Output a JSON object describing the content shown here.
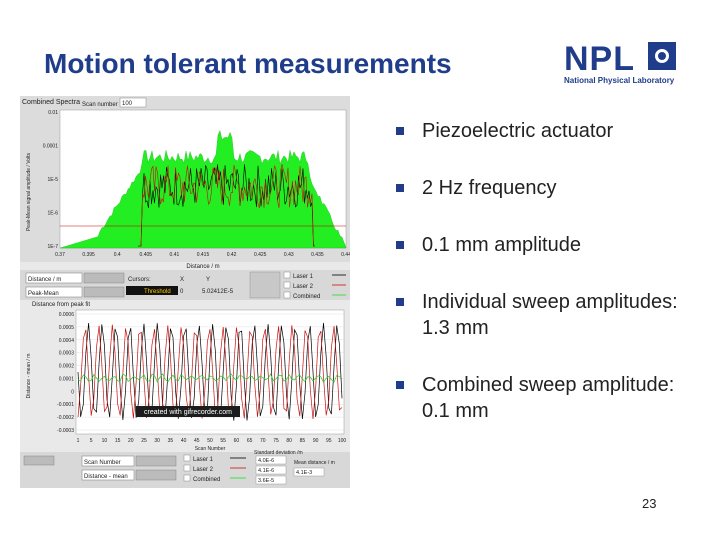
{
  "slide": {
    "title": "Motion tolerant measurements",
    "page_number": "23",
    "logo": {
      "name": "NPL",
      "subtitle": "National Physical Laboratory"
    },
    "bullets": [
      "Piezoelectric actuator",
      "2 Hz frequency",
      "0.1 mm amplitude",
      "Individual sweep amplitudes: 1.3 mm",
      "Combined  sweep amplitude: 0.1 mm"
    ]
  },
  "panel": {
    "top_chart": {
      "title": "Combined Spectra",
      "scan_label": "Scan number",
      "scan_value": "100",
      "ylabel": "Peak-Mean signal amplitude / Volts",
      "xlabel": "Distance / m",
      "yticks": [
        "0.01",
        "0.0001",
        "1E-5",
        "1E-6",
        "1E-7"
      ],
      "xticks": [
        "0.37",
        "0.395",
        "0.4",
        "0.405",
        "0.41",
        "0.415",
        "0.42",
        "0.425",
        "0.43",
        "0.435",
        "0.44"
      ]
    },
    "controls_mid": {
      "select1": "Distance / m",
      "select2": "Peak-Mean",
      "cursors_header": [
        "Cursors:",
        "X",
        "Y"
      ],
      "cursor_row": [
        "Threshold",
        "0",
        "5.02412E-5"
      ],
      "legend": [
        "Laser 1",
        "Laser 2",
        "Combined"
      ]
    },
    "bottom_chart": {
      "title": "Distance from peak fit",
      "ylabel": "Distance - mean / m",
      "xlabel": "Scan Number",
      "yticks": [
        "0.0006",
        "0.0005",
        "0.0004",
        "0.0003",
        "0.0002",
        "0.0001",
        "0",
        "-0.0001",
        "-0.0002",
        "-0.0003"
      ],
      "xticks": [
        "1",
        "5",
        "10",
        "15",
        "20",
        "25",
        "30",
        "35",
        "40",
        "45",
        "50",
        "55",
        "60",
        "65",
        "70",
        "75",
        "80",
        "85",
        "90",
        "95",
        "100"
      ],
      "watermark": "created with gifrecorder.com"
    },
    "controls_bottom": {
      "select1": "Scan Number",
      "select2": "Distance - mean",
      "legend": [
        "Laser 1",
        "Laser 2",
        "Combined"
      ],
      "std_dev_label": "Standard deviation /m",
      "std_dev_values": [
        "4.0E-6",
        "4.1E-6",
        "3.6E-5"
      ],
      "mean_label": "Mean distance / m",
      "mean_value": "4.1E-3"
    }
  }
}
